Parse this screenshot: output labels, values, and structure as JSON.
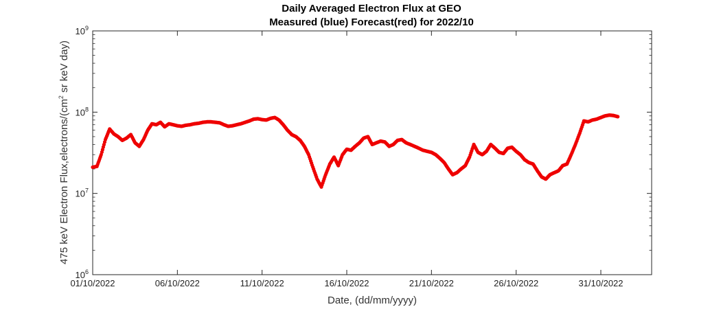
{
  "chart_data": {
    "type": "scatter",
    "title": "Daily Averaged Electron Flux at GEO",
    "subtitle": "Measured (blue) Forecast(red) for 2022/10",
    "xlabel": "Date, (dd/mm/yyyy)",
    "ylabel": {
      "before_sup": "475 keV Electron Flux,electrons/(cm",
      "sup": "2",
      "after_sup": " sr keV day)"
    },
    "y_scale": "log",
    "ylim": [
      1000000,
      1000000000
    ],
    "y_ticks": [
      {
        "value": 1000000,
        "base": "10",
        "exp": "6"
      },
      {
        "value": 10000000,
        "base": "10",
        "exp": "7"
      },
      {
        "value": 100000000,
        "base": "10",
        "exp": "8"
      },
      {
        "value": 1000000000,
        "base": "10",
        "exp": "9"
      }
    ],
    "xlim": [
      "2022-10-01",
      "2022-11-03"
    ],
    "x_ticks": [
      {
        "value": "2022-10-01",
        "label": "01/10/2022"
      },
      {
        "value": "2022-10-06",
        "label": "06/10/2022"
      },
      {
        "value": "2022-10-11",
        "label": "11/10/2022"
      },
      {
        "value": "2022-10-16",
        "label": "16/10/2022"
      },
      {
        "value": "2022-10-21",
        "label": "21/10/2022"
      },
      {
        "value": "2022-10-26",
        "label": "26/10/2022"
      },
      {
        "value": "2022-10-31",
        "label": "31/10/2022"
      }
    ],
    "grid": false,
    "series": [
      {
        "color": "#ee0000",
        "x": [
          "2022-10-01 00:00",
          "2022-10-01 06:00",
          "2022-10-01 12:00",
          "2022-10-01 18:00",
          "2022-10-02 00:00",
          "2022-10-02 06:00",
          "2022-10-02 12:00",
          "2022-10-02 18:00",
          "2022-10-03 00:00",
          "2022-10-03 06:00",
          "2022-10-03 12:00",
          "2022-10-03 18:00",
          "2022-10-04 00:00",
          "2022-10-04 06:00",
          "2022-10-04 12:00",
          "2022-10-04 18:00",
          "2022-10-05 00:00",
          "2022-10-05 06:00",
          "2022-10-05 12:00",
          "2022-10-05 18:00",
          "2022-10-06 00:00",
          "2022-10-06 06:00",
          "2022-10-06 12:00",
          "2022-10-06 18:00",
          "2022-10-07 00:00",
          "2022-10-07 06:00",
          "2022-10-07 12:00",
          "2022-10-07 18:00",
          "2022-10-08 00:00",
          "2022-10-08 06:00",
          "2022-10-08 12:00",
          "2022-10-08 18:00",
          "2022-10-09 00:00",
          "2022-10-09 06:00",
          "2022-10-09 12:00",
          "2022-10-09 18:00",
          "2022-10-10 00:00",
          "2022-10-10 06:00",
          "2022-10-10 12:00",
          "2022-10-10 18:00",
          "2022-10-11 00:00",
          "2022-10-11 06:00",
          "2022-10-11 12:00",
          "2022-10-11 18:00",
          "2022-10-12 00:00",
          "2022-10-12 06:00",
          "2022-10-12 12:00",
          "2022-10-12 18:00",
          "2022-10-13 00:00",
          "2022-10-13 06:00",
          "2022-10-13 12:00",
          "2022-10-13 18:00",
          "2022-10-14 00:00",
          "2022-10-14 06:00",
          "2022-10-14 12:00",
          "2022-10-14 18:00",
          "2022-10-15 00:00",
          "2022-10-15 06:00",
          "2022-10-15 12:00",
          "2022-10-15 18:00",
          "2022-10-16 00:00",
          "2022-10-16 06:00",
          "2022-10-16 12:00",
          "2022-10-16 18:00",
          "2022-10-17 00:00",
          "2022-10-17 06:00",
          "2022-10-17 12:00",
          "2022-10-17 18:00",
          "2022-10-18 00:00",
          "2022-10-18 06:00",
          "2022-10-18 12:00",
          "2022-10-18 18:00",
          "2022-10-19 00:00",
          "2022-10-19 06:00",
          "2022-10-19 12:00",
          "2022-10-19 18:00",
          "2022-10-20 00:00",
          "2022-10-20 06:00",
          "2022-10-20 12:00",
          "2022-10-20 18:00",
          "2022-10-21 00:00",
          "2022-10-21 06:00",
          "2022-10-21 12:00",
          "2022-10-21 18:00",
          "2022-10-22 00:00",
          "2022-10-22 06:00",
          "2022-10-22 12:00",
          "2022-10-22 18:00",
          "2022-10-23 00:00",
          "2022-10-23 06:00",
          "2022-10-23 12:00",
          "2022-10-23 18:00",
          "2022-10-24 00:00",
          "2022-10-24 06:00",
          "2022-10-24 12:00",
          "2022-10-24 18:00",
          "2022-10-25 00:00",
          "2022-10-25 06:00",
          "2022-10-25 12:00",
          "2022-10-25 18:00",
          "2022-10-26 00:00",
          "2022-10-26 06:00",
          "2022-10-26 12:00",
          "2022-10-26 18:00",
          "2022-10-27 00:00",
          "2022-10-27 06:00",
          "2022-10-27 12:00",
          "2022-10-27 18:00",
          "2022-10-28 00:00",
          "2022-10-28 06:00",
          "2022-10-28 12:00",
          "2022-10-28 18:00",
          "2022-10-29 00:00",
          "2022-10-29 06:00",
          "2022-10-29 12:00",
          "2022-10-29 18:00",
          "2022-10-30 00:00",
          "2022-10-30 06:00",
          "2022-10-30 12:00",
          "2022-10-30 18:00",
          "2022-10-31 00:00",
          "2022-10-31 06:00",
          "2022-10-31 12:00",
          "2022-10-31 18:00",
          "2022-11-01 00:00"
        ],
        "y": [
          21000000,
          21500000,
          30000000,
          46000000,
          62000000,
          54000000,
          50000000,
          45000000,
          48000000,
          53000000,
          42000000,
          38000000,
          46000000,
          60000000,
          72000000,
          70000000,
          75000000,
          66000000,
          72000000,
          70000000,
          68000000,
          67000000,
          69000000,
          70000000,
          72000000,
          73000000,
          75000000,
          76000000,
          76000000,
          75000000,
          74000000,
          70000000,
          67000000,
          68000000,
          70000000,
          72000000,
          75000000,
          78000000,
          82000000,
          83000000,
          81000000,
          80000000,
          84000000,
          86000000,
          80000000,
          70000000,
          60000000,
          53000000,
          50000000,
          45000000,
          38000000,
          30000000,
          21000000,
          15000000,
          12000000,
          17000000,
          23000000,
          28000000,
          22000000,
          30000000,
          35000000,
          34000000,
          38000000,
          42000000,
          48000000,
          50000000,
          40000000,
          42000000,
          44000000,
          43000000,
          38000000,
          40000000,
          45000000,
          46000000,
          42000000,
          40000000,
          38000000,
          36000000,
          34000000,
          33000000,
          32000000,
          30000000,
          27000000,
          24000000,
          20000000,
          17000000,
          18000000,
          20000000,
          22000000,
          28000000,
          40000000,
          32000000,
          30000000,
          33000000,
          40000000,
          36000000,
          32000000,
          31000000,
          36000000,
          37000000,
          33000000,
          30000000,
          26000000,
          24000000,
          23000000,
          19000000,
          16000000,
          15000000,
          17000000,
          18000000,
          19000000,
          22000000,
          23000000,
          30000000,
          40000000,
          55000000,
          78000000,
          76000000,
          80000000,
          82000000,
          86000000,
          90000000,
          92000000,
          91000000,
          88000000
        ]
      }
    ]
  }
}
